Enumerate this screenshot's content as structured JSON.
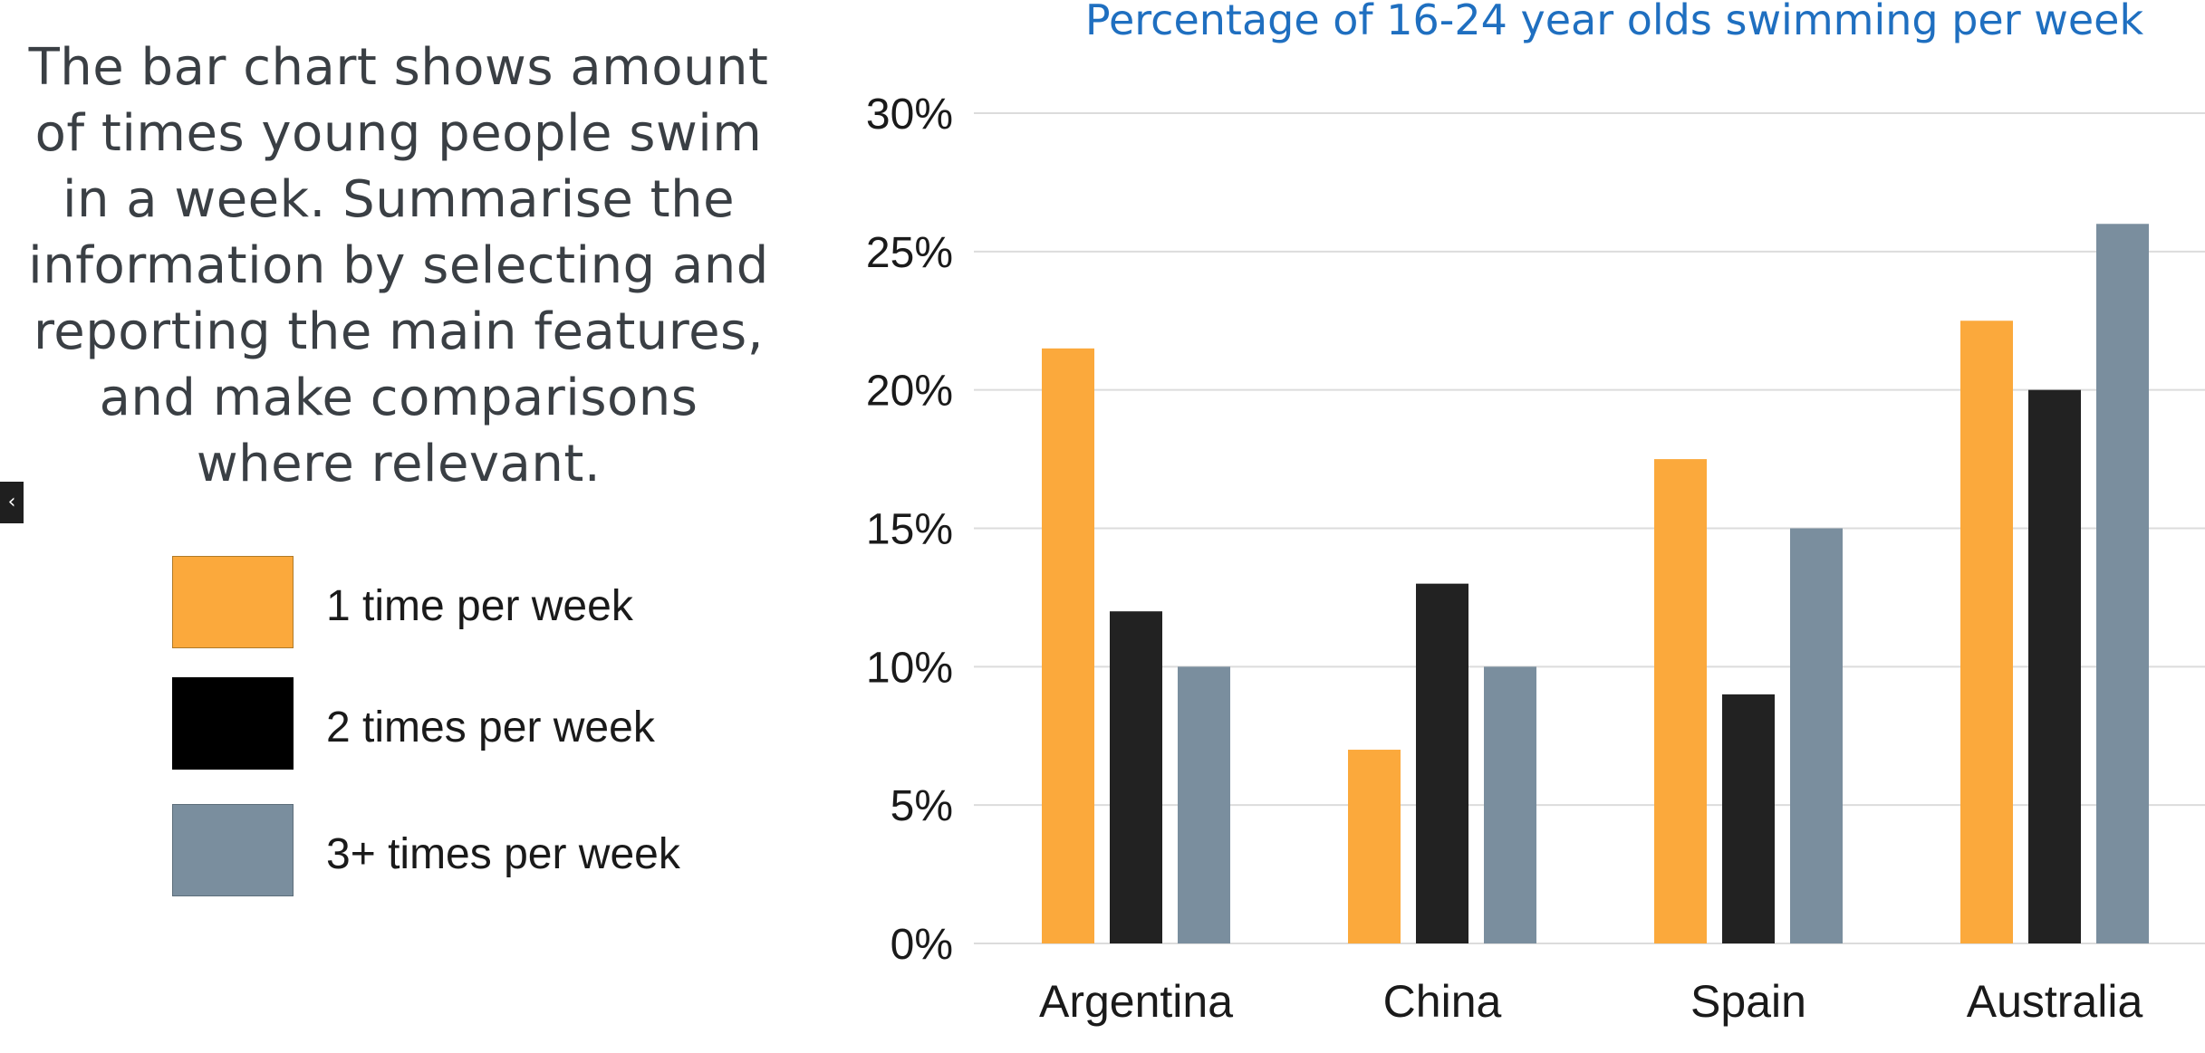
{
  "prompt": {
    "lines": [
      "The bar chart shows amount",
      "of times young people swim",
      "in a week. Summarise the",
      "information by selecting and",
      "reporting the main features,",
      "and make comparisons",
      "where relevant."
    ]
  },
  "sidebar_toggle": {
    "icon": "chevron-left-icon",
    "glyph": "‹"
  },
  "legend": [
    {
      "label": "1 time per week",
      "color": "#FBA93C"
    },
    {
      "label": "2 times per week",
      "color": "#000000"
    },
    {
      "label": "3+ times per week",
      "color": "#7A8E9E"
    }
  ],
  "chart_data": {
    "type": "bar",
    "title": "Percentage of 16-24 year olds swimming per week",
    "xlabel": "",
    "ylabel": "",
    "categories": [
      "Argentina",
      "China",
      "Spain",
      "Australia"
    ],
    "series": [
      {
        "name": "1 time per week",
        "color": "#FBA93C",
        "values": [
          21.5,
          7,
          17.5,
          22.5
        ]
      },
      {
        "name": "2 times per week",
        "color": "#222222",
        "values": [
          12,
          13,
          9,
          20
        ]
      },
      {
        "name": "3+ times per week",
        "color": "#7A8E9E",
        "values": [
          10,
          10,
          15,
          26
        ]
      }
    ],
    "ylim": [
      0,
      30
    ],
    "yticks": [
      0,
      5,
      10,
      15,
      20,
      25,
      30
    ],
    "ytick_labels": [
      "0%",
      "5%",
      "10%",
      "15%",
      "20%",
      "25%",
      "30%"
    ],
    "grid": true,
    "legend_position": "left"
  }
}
